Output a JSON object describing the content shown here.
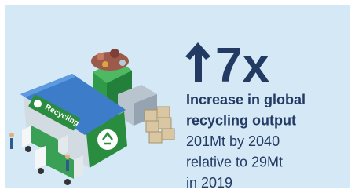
{
  "stat": {
    "value": "7x",
    "headline": [
      "Increase in global",
      "recycling output"
    ],
    "detail": [
      "201Mt by 2040",
      "relative to 29Mt",
      "in 2019"
    ]
  },
  "illustration": {
    "sign": "Recycling"
  }
}
